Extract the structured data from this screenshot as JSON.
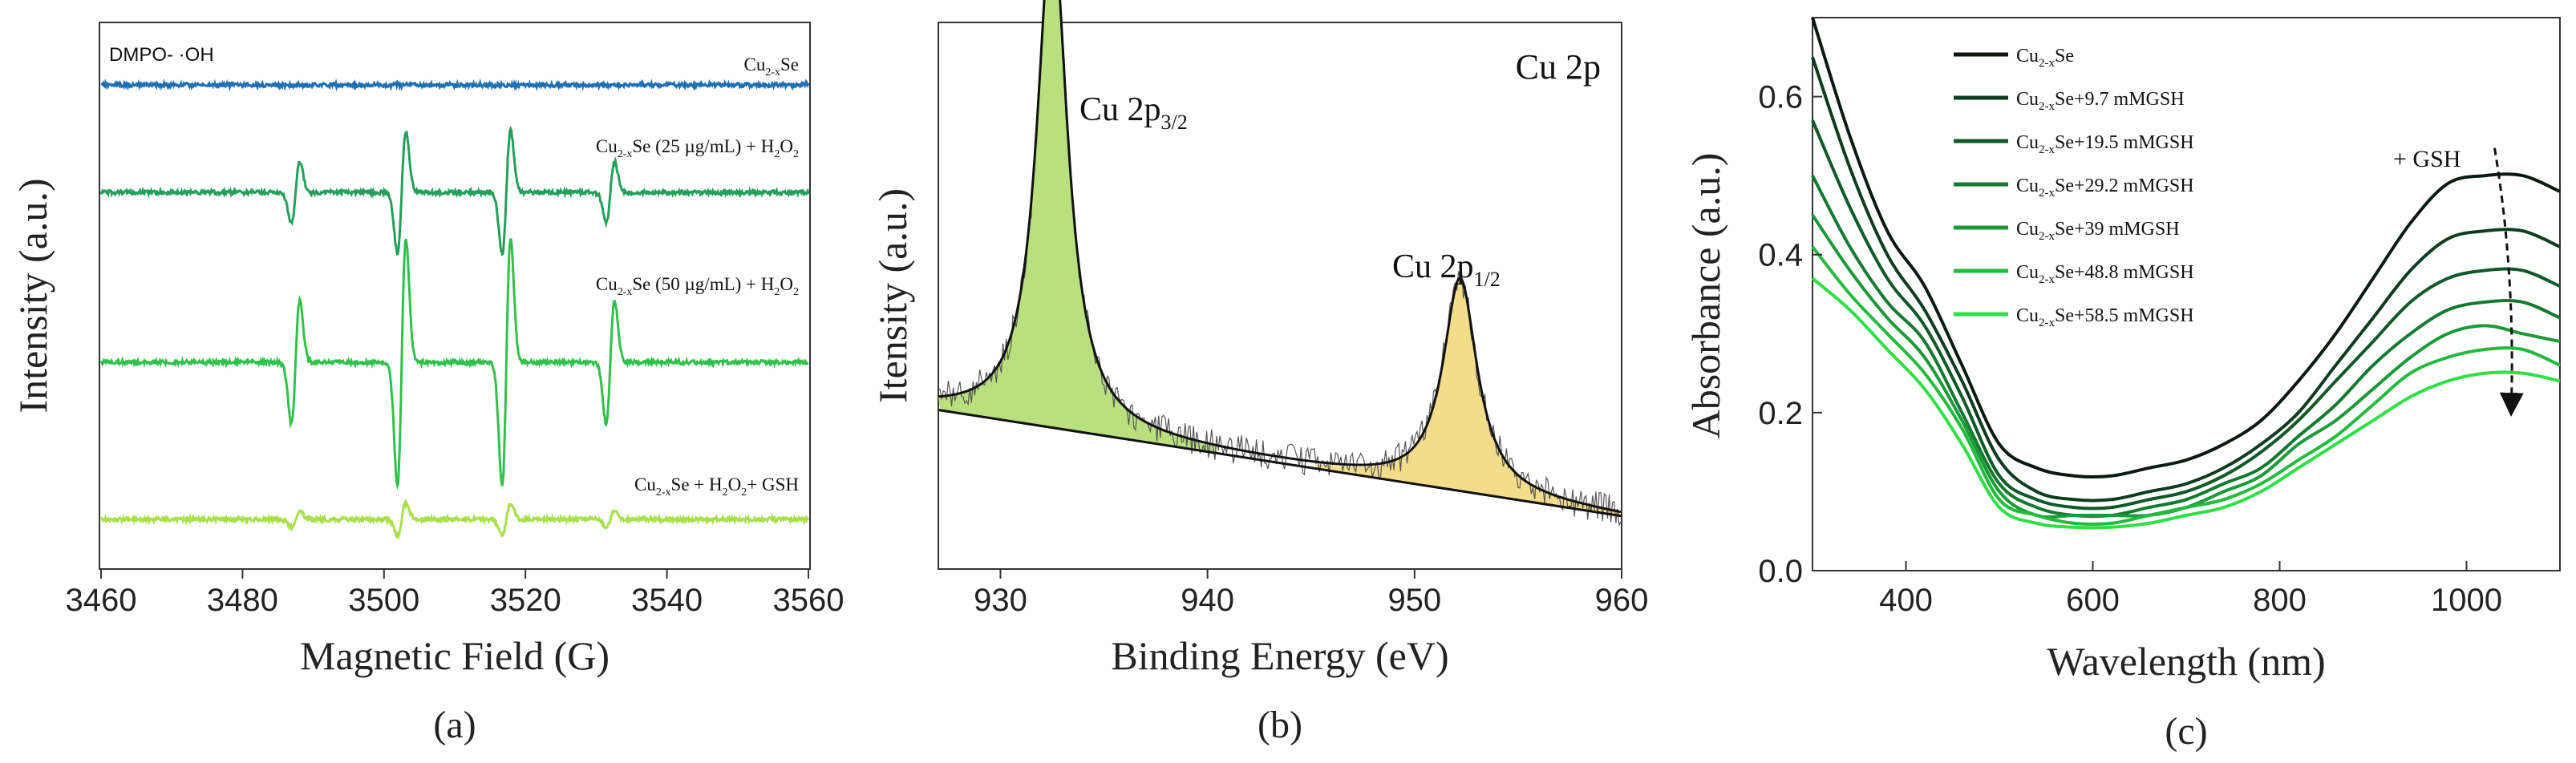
{
  "figure": {
    "panel_labels": [
      "(a)",
      "(b)",
      "(c)"
    ]
  },
  "chart_data": [
    {
      "type": "line",
      "panel": "(a)",
      "title": "",
      "xlabel": "Magnetic Field (G)",
      "ylabel": "Intensity (a.u.)",
      "xlim": [
        3460,
        3560
      ],
      "x_ticks": [
        3460,
        3480,
        3500,
        3520,
        3540,
        3560
      ],
      "y_ticks": [],
      "annotation": "DMPO- ·OH",
      "peak_fields": [
        3487.5,
        3502.5,
        3517.3,
        3532.0
      ],
      "peak_ratio": [
        1,
        2,
        2,
        1
      ],
      "series": [
        {
          "name": "Cu2-xSe",
          "label_main": "Cu",
          "label_sub": "2-x",
          "label_rest": "Se",
          "color": "#1f6fb5",
          "baseline": 0.0,
          "amplitude": 0.0
        },
        {
          "name": "Cu2-xSe (25 µg/mL) + H2O2",
          "label_main": "Cu",
          "label_sub": "2-x",
          "label_rest": "Se (25 µg/mL) + H",
          "label_sub2": "2",
          "label_rest2": "O",
          "label_sub3": "2",
          "color": "#23a05a",
          "baseline": -1.0,
          "amplitude": 0.55
        },
        {
          "name": "Cu2-xSe (50 µg/mL) + H2O2",
          "label_main": "Cu",
          "label_sub": "2-x",
          "label_rest": "Se (50 µg/mL) + H",
          "label_sub2": "2",
          "label_rest2": "O",
          "label_sub3": "2",
          "color": "#2fc24a",
          "baseline": -2.65,
          "amplitude": 1.1
        },
        {
          "name": "Cu2-xSe + H2O2+ GSH",
          "label_main": "Cu",
          "label_sub": "2-x",
          "label_rest": "Se + H",
          "label_sub2": "2",
          "label_rest2": "O",
          "label_sub3": "2",
          "label_rest3": "+ GSH",
          "color": "#a8e04a",
          "baseline": -4.15,
          "amplitude": 0.2
        }
      ]
    },
    {
      "type": "area",
      "panel": "(b)",
      "title": "Cu 2p",
      "xlabel": "Binding Energy (eV)",
      "ylabel": "Itensity (a.u.)",
      "xlim": [
        927,
        960
      ],
      "x_ticks": [
        930,
        940,
        950,
        960
      ],
      "y_ticks": [],
      "background": {
        "x": [
          927,
          960
        ],
        "y": [
          0.3,
          0.1
        ]
      },
      "peaks": [
        {
          "label_main": "Cu 2p",
          "label_sub": "3/2",
          "center": 932.5,
          "height": 0.95,
          "width": 0.9,
          "fill": "#b9e07e"
        },
        {
          "label_main": "Cu 2p",
          "label_sub": "1/2",
          "center": 952.2,
          "height": 0.4,
          "width": 1.0,
          "fill": "#f3dd8a"
        }
      ]
    },
    {
      "type": "line",
      "panel": "(c)",
      "title": "",
      "xlabel": "Wavelength (nm)",
      "ylabel": "Absorbance (a.u.)",
      "xlim": [
        300,
        1100
      ],
      "ylim": [
        0.0,
        0.7
      ],
      "x_ticks": [
        400,
        600,
        800,
        1000
      ],
      "y_ticks": [
        0.0,
        0.2,
        0.4,
        0.6
      ],
      "y_tick_labels": [
        "0.0",
        "0.2",
        "0.4",
        "0.6"
      ],
      "annotation": "+ GSH",
      "wavelengths": [
        300,
        340,
        380,
        420,
        460,
        500,
        540,
        580,
        620,
        660,
        700,
        740,
        780,
        820,
        860,
        900,
        940,
        980,
        1020,
        1060,
        1100
      ],
      "series": [
        {
          "name": "Cu2-xSe",
          "label_main": "Cu",
          "label_sub": "2-x",
          "label_rest": "Se",
          "color": "#0b1a10",
          "values": [
            0.7,
            0.55,
            0.43,
            0.36,
            0.26,
            0.16,
            0.13,
            0.12,
            0.12,
            0.13,
            0.14,
            0.16,
            0.19,
            0.24,
            0.3,
            0.37,
            0.44,
            0.49,
            0.5,
            0.5,
            0.48
          ]
        },
        {
          "name": "Cu2-xSe+9.7 mMGSH",
          "label_main": "Cu",
          "label_sub": "2-x",
          "label_rest": "Se+9.7 mMGSH",
          "color": "#0d3d1e",
          "values": [
            0.65,
            0.51,
            0.4,
            0.33,
            0.24,
            0.14,
            0.1,
            0.09,
            0.09,
            0.1,
            0.11,
            0.13,
            0.16,
            0.2,
            0.26,
            0.32,
            0.38,
            0.42,
            0.43,
            0.43,
            0.41
          ]
        },
        {
          "name": "Cu2-xSe+19.5 mMGSH",
          "label_main": "Cu",
          "label_sub": "2-x",
          "label_rest": "Se+19.5 mMGSH",
          "color": "#0f5a27",
          "values": [
            0.57,
            0.46,
            0.37,
            0.31,
            0.22,
            0.12,
            0.09,
            0.08,
            0.08,
            0.09,
            0.1,
            0.12,
            0.15,
            0.19,
            0.24,
            0.29,
            0.34,
            0.37,
            0.38,
            0.38,
            0.36
          ]
        },
        {
          "name": "Cu2-xSe+29.2 mMGSH",
          "label_main": "Cu",
          "label_sub": "2-x",
          "label_rest": "Se+29.2 mMGSH",
          "color": "#147a30",
          "values": [
            0.5,
            0.41,
            0.34,
            0.29,
            0.2,
            0.11,
            0.08,
            0.07,
            0.07,
            0.08,
            0.09,
            0.11,
            0.13,
            0.17,
            0.21,
            0.26,
            0.3,
            0.33,
            0.34,
            0.34,
            0.32
          ]
        },
        {
          "name": "Cu2-xSe+39 mMGSH",
          "label_main": "Cu",
          "label_sub": "2-x",
          "label_rest": "Se+39 mMGSH",
          "color": "#1a9a38",
          "values": [
            0.45,
            0.38,
            0.32,
            0.27,
            0.19,
            0.1,
            0.07,
            0.07,
            0.07,
            0.07,
            0.08,
            0.1,
            0.12,
            0.16,
            0.19,
            0.23,
            0.27,
            0.3,
            0.31,
            0.3,
            0.29
          ]
        },
        {
          "name": "Cu2-xSe+48.8 mMGSH",
          "label_main": "Cu",
          "label_sub": "2-x",
          "label_rest": "Se+48.8 mMGSH",
          "color": "#22bb3e",
          "values": [
            0.41,
            0.35,
            0.3,
            0.25,
            0.18,
            0.09,
            0.07,
            0.06,
            0.06,
            0.07,
            0.08,
            0.09,
            0.11,
            0.14,
            0.17,
            0.21,
            0.25,
            0.27,
            0.28,
            0.28,
            0.26
          ]
        },
        {
          "name": "Cu2-xSe+58.5 mMGSH",
          "label_main": "Cu",
          "label_sub": "2-x",
          "label_rest": "Se+58.5 mMGSH",
          "color": "#2ee044",
          "values": [
            0.37,
            0.33,
            0.28,
            0.23,
            0.16,
            0.08,
            0.06,
            0.055,
            0.055,
            0.06,
            0.07,
            0.08,
            0.1,
            0.13,
            0.16,
            0.19,
            0.22,
            0.24,
            0.25,
            0.25,
            0.24
          ]
        }
      ]
    }
  ]
}
